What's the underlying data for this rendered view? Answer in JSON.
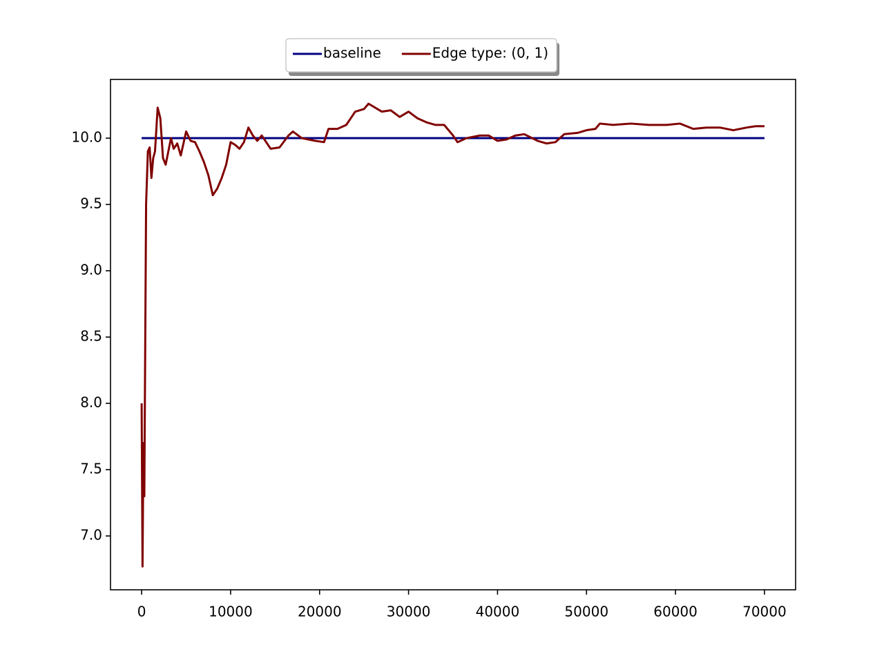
{
  "chart_data": {
    "type": "line",
    "xlim": [
      -3500,
      73500
    ],
    "ylim": [
      6.594,
      10.443
    ],
    "xticks": [
      0,
      10000,
      20000,
      30000,
      40000,
      50000,
      60000,
      70000
    ],
    "yticks": [
      {
        "value": 7,
        "label": "7.0"
      },
      {
        "value": 7.5,
        "label": "7.5"
      },
      {
        "value": 8,
        "label": "8.0"
      },
      {
        "value": 8.5,
        "label": "8.5"
      },
      {
        "value": 9,
        "label": "9.0"
      },
      {
        "value": 9.5,
        "label": "9.5"
      },
      {
        "value": 10,
        "label": "10.0"
      }
    ],
    "legend": "upper center outside",
    "series": [
      {
        "name": "baseline",
        "color": "#000080",
        "x": [
          0,
          70000
        ],
        "values": [
          10,
          10
        ]
      },
      {
        "name": "Edge type: (0, 1)",
        "color": "#800000",
        "x": [
          0,
          100,
          200,
          300,
          500,
          700,
          900,
          1100,
          1300,
          1500,
          1800,
          2100,
          2400,
          2700,
          3000,
          3300,
          3600,
          4000,
          4400,
          5000,
          5500,
          6000,
          6500,
          7000,
          7500,
          8000,
          8500,
          9000,
          9500,
          10000,
          10500,
          11000,
          11500,
          12000,
          12500,
          13000,
          13500,
          14000,
          14500,
          15500,
          16500,
          17000,
          18000,
          19500,
          20500,
          21000,
          22000,
          23000,
          24000,
          25000,
          25500,
          27000,
          28000,
          29000,
          30000,
          31000,
          32000,
          33000,
          34000,
          35000,
          35500,
          36500,
          38000,
          39000,
          40000,
          41000,
          42000,
          43000,
          44500,
          45500,
          46500,
          47500,
          49000,
          50000,
          51000,
          51500,
          53000,
          55000,
          57000,
          59000,
          60500,
          62000,
          63500,
          65000,
          66500,
          68000,
          69000,
          70000
        ],
        "values": [
          8.0,
          6.77,
          7.7,
          7.3,
          9.5,
          9.9,
          9.93,
          9.7,
          9.85,
          9.9,
          10.23,
          10.15,
          9.85,
          9.8,
          9.9,
          10.0,
          9.92,
          9.96,
          9.87,
          10.05,
          9.98,
          9.97,
          9.9,
          9.82,
          9.72,
          9.57,
          9.62,
          9.7,
          9.8,
          9.97,
          9.95,
          9.92,
          9.97,
          10.08,
          10.02,
          9.98,
          10.02,
          9.97,
          9.92,
          9.93,
          10.02,
          10.05,
          10.0,
          9.98,
          9.97,
          10.07,
          10.07,
          10.1,
          10.2,
          10.22,
          10.26,
          10.2,
          10.21,
          10.16,
          10.2,
          10.15,
          10.12,
          10.1,
          10.1,
          10.02,
          9.97,
          10.0,
          10.02,
          10.02,
          9.98,
          9.99,
          10.02,
          10.03,
          9.98,
          9.96,
          9.97,
          10.03,
          10.04,
          10.06,
          10.07,
          10.11,
          10.1,
          10.11,
          10.1,
          10.1,
          10.11,
          10.07,
          10.08,
          10.08,
          10.06,
          10.08,
          10.09,
          10.09
        ]
      }
    ]
  }
}
